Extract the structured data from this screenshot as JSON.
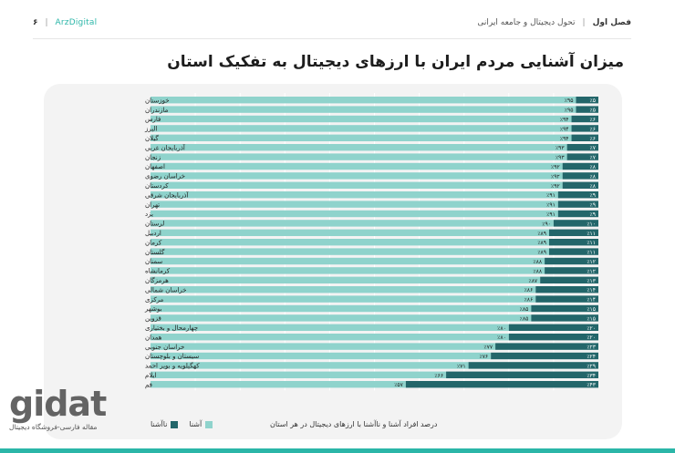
{
  "header": {
    "page_number": "۶",
    "brand": "ArzDigital",
    "chapter": "فصل اول",
    "section": "تحول دیجیتال و جامعه ایرانی"
  },
  "colors": {
    "aware": "#8fd3cc",
    "unaware": "#23666a",
    "accent": "#2bb6a8",
    "panel_bg": "#f3f3f3"
  },
  "legend": {
    "aware_label": "آشنا",
    "unaware_label": "ناآشنا",
    "caption": "درصد افراد آشنا و ناآشنا با ارزهای دیجیتال در هر استان"
  },
  "watermark": {
    "logo_text": "gidat",
    "subtitle": "مقاله فارسی-فروشگاه دیجیتال"
  },
  "chart_data": {
    "type": "bar",
    "orientation": "horizontal",
    "stacked": true,
    "title": "میزان آشنایی مردم ایران با ارزهای دیجیتال به تفکیک استان",
    "xlim": [
      0,
      100
    ],
    "grid": true,
    "legend_position": "bottom",
    "categories": [
      "خوزستان",
      "مازندران",
      "فارس",
      "البرز",
      "گیلان",
      "آذربایجان غربی",
      "زنجان",
      "اصفهان",
      "خراسان رضوی",
      "کردستان",
      "آذربایجان شرقی",
      "تهران",
      "یزد",
      "لرستان",
      "اردبیل",
      "کرمان",
      "گلستان",
      "سمنان",
      "کرمانشاه",
      "هرمزگان",
      "خراسان شمالی",
      "مرکزی",
      "بوشهر",
      "قزوین",
      "چهارمحال و بختیاری",
      "همدان",
      "خراسان جنوبی",
      "سیستان و بلوچستان",
      "کهگیلویه و بویر احمد",
      "ایلام",
      "قم"
    ],
    "series": [
      {
        "name": "آشنا",
        "values": [
          95,
          95,
          94,
          94,
          94,
          93,
          93,
          92,
          92,
          92,
          91,
          91,
          91,
          90,
          89,
          89,
          89,
          88,
          88,
          87,
          86,
          86,
          85,
          85,
          80,
          80,
          77,
          76,
          71,
          66,
          57
        ],
        "labels": [
          "٪۹۵",
          "٪۹۵",
          "٪۹۴",
          "٪۹۴",
          "٪۹۴",
          "٪۹۳",
          "٪۹۳",
          "٪۹۲",
          "٪۹۲",
          "٪۹۲",
          "٪۹۱",
          "٪۹۱",
          "٪۹۱",
          "٪۹۰",
          "٪۸۹",
          "٪۸۹",
          "٪۸۹",
          "٪۸۸",
          "٪۸۸",
          "٪۸۷",
          "٪۸۶",
          "٪۸۶",
          "٪۸۵",
          "٪۸۵",
          "٪۸۰",
          "٪۸۰",
          "٪۷۷",
          "٪۷۶",
          "٪۷۱",
          "٪۶۶",
          "٪۵۷"
        ]
      },
      {
        "name": "ناآشنا",
        "values": [
          5,
          5,
          6,
          6,
          6,
          7,
          7,
          8,
          8,
          8,
          9,
          9,
          9,
          10,
          11,
          11,
          11,
          12,
          12,
          13,
          14,
          14,
          15,
          15,
          20,
          20,
          23,
          24,
          29,
          34,
          43
        ],
        "labels": [
          "٪۵",
          "٪۵",
          "٪۶",
          "٪۶",
          "٪۶",
          "٪۷",
          "٪۷",
          "٪۸",
          "٪۸",
          "٪۸",
          "٪۹",
          "٪۹",
          "٪۹",
          "٪۱۰",
          "٪۱۱",
          "٪۱۱",
          "٪۱۱",
          "٪۱۲",
          "٪۱۲",
          "٪۱۳",
          "٪۱۴",
          "٪۱۴",
          "٪۱۵",
          "٪۱۵",
          "٪۲۰",
          "٪۲۰",
          "٪۲۳",
          "٪۲۴",
          "٪۲۹",
          "٪۳۴",
          "٪۴۳"
        ]
      }
    ]
  }
}
